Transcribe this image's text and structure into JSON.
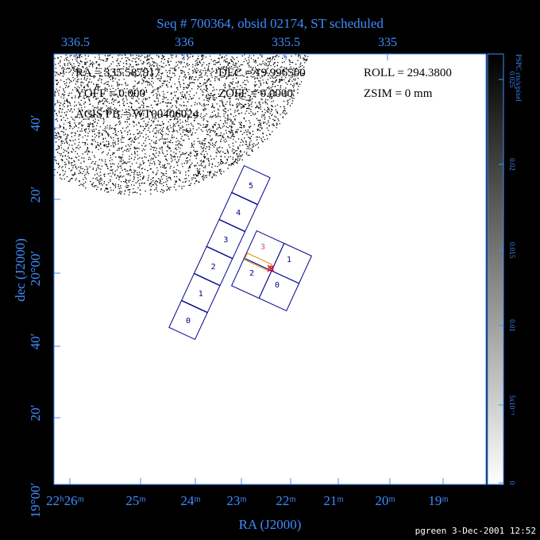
{
  "title": "Seq # 700364, obsid 02174, ST scheduled",
  "info": [
    [
      "RA = 335.587917",
      "DEC = 19.996500",
      "ROLL = 294.3800"
    ],
    [
      "YOFF = 0.000'",
      "ZOFF = 0.0000'",
      "ZSIM = 0 mm"
    ],
    [
      "ACIS PB = WT00406024"
    ]
  ],
  "top_axis": {
    "ticks": [
      "336.5",
      "336",
      "335.5",
      "335"
    ]
  },
  "bottom_axis": {
    "ticks": [
      "22ʰ26ᵐ",
      "25ᵐ",
      "24ᵐ",
      "23ᵐ",
      "22ᵐ",
      "21ᵐ",
      "20ᵐ",
      "19ᵐ"
    ],
    "label": "RA (J2000)"
  },
  "left_axis": {
    "ticks": [
      "40′",
      "20′",
      "20°00′",
      "40′",
      "20′",
      "19°00′"
    ],
    "label": "dec (J2000)"
  },
  "colorbar": {
    "label": "PSPC cts/s/pixel",
    "ticks": [
      "0.025",
      "0.02",
      "0.015",
      "0.01",
      "5x10⁻³",
      "0"
    ]
  },
  "chips": {
    "s_array": [
      "0",
      "1",
      "2",
      "3",
      "4",
      "5"
    ],
    "i_array": [
      "0",
      "1",
      "2",
      "3"
    ]
  },
  "footer": "pgreen  3-Dec-2001 12:52"
}
